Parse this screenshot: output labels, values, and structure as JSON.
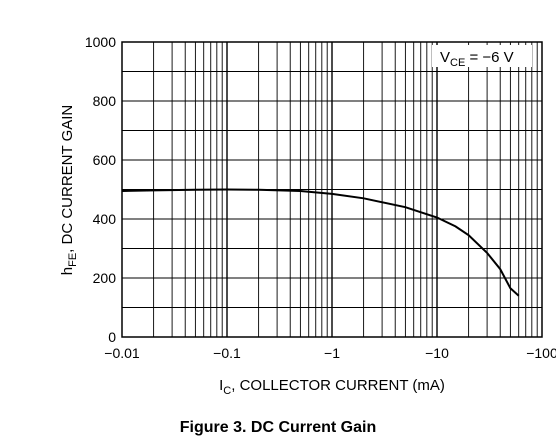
{
  "chart_data": {
    "type": "line",
    "title": "",
    "x_scale": "log",
    "xlim": [
      -0.01,
      -100
    ],
    "ylim": [
      0,
      1000
    ],
    "grid": true,
    "x_ticks": [
      "−0.01",
      "−0.1",
      "−1",
      "−10",
      "−100"
    ],
    "y_ticks": [
      "0",
      "200",
      "400",
      "600",
      "800",
      "1000"
    ],
    "xlabel": {
      "main": "I",
      "sub": "C",
      "rest": ", COLLECTOR CURRENT (mA)"
    },
    "ylabel": {
      "main": "h",
      "sub": "FE",
      "rest": ", DC CURRENT GAIN"
    },
    "annotation": {
      "main": "V",
      "sub": "CE",
      "rest": " = −6 V"
    },
    "series": [
      {
        "x": [
          -0.01,
          -0.02,
          -0.05,
          -0.1,
          -0.2,
          -0.5,
          -1,
          -2,
          -5,
          -10,
          -15,
          -20,
          -30,
          -40,
          -50,
          -60
        ],
        "y": [
          495,
          497,
          499,
          500,
          499,
          495,
          485,
          470,
          440,
          405,
          375,
          345,
          285,
          230,
          165,
          140
        ]
      }
    ]
  },
  "caption": "Figure 3. DC Current Gain"
}
